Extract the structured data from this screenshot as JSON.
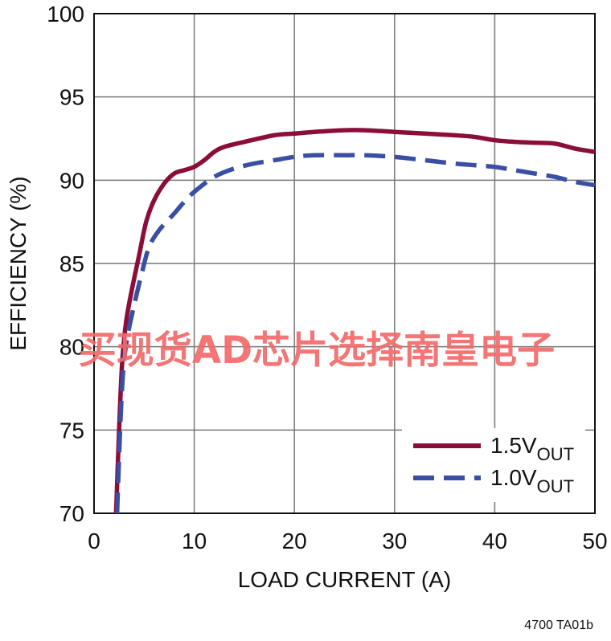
{
  "chart_data": {
    "type": "line",
    "title": "",
    "xlabel": "LOAD CURRENT (A)",
    "ylabel": "EFFICIENCY (%)",
    "xlim": [
      0,
      50
    ],
    "ylim": [
      70,
      100
    ],
    "x_ticks": [
      0,
      10,
      20,
      30,
      40,
      50
    ],
    "y_ticks": [
      70,
      75,
      80,
      85,
      90,
      95,
      100
    ],
    "grid": true,
    "legend_position": "bottom-right",
    "series": [
      {
        "name": "1.5VOUT",
        "label_main": "1.5V",
        "label_sub": "OUT",
        "color": "#8b0e3a",
        "dash": "solid",
        "x": [
          2.2,
          2.5,
          2.8,
          3.2,
          3.8,
          4.5,
          5.2,
          6,
          7,
          8,
          9,
          10,
          11,
          12,
          13,
          15,
          18,
          20,
          22,
          25,
          27,
          30,
          33,
          36,
          38,
          40,
          42,
          44,
          46,
          48,
          50
        ],
        "y": [
          70,
          75,
          79,
          81.5,
          83.5,
          85.5,
          87.5,
          88.8,
          89.8,
          90.4,
          90.6,
          90.8,
          91.2,
          91.7,
          92.0,
          92.3,
          92.7,
          92.8,
          92.9,
          93.0,
          93.0,
          92.9,
          92.8,
          92.7,
          92.6,
          92.4,
          92.3,
          92.25,
          92.2,
          91.9,
          91.7
        ]
      },
      {
        "name": "1.0VOUT",
        "label_main": "1.0V",
        "label_sub": "OUT",
        "color": "#3a4fa3",
        "dash": "dashed",
        "x": [
          2.3,
          2.6,
          2.9,
          3.3,
          4,
          4.8,
          5.5,
          6.5,
          8,
          9,
          10,
          12,
          14,
          16,
          18,
          20,
          22,
          25,
          27,
          30,
          33,
          36,
          38,
          40,
          42,
          44,
          46,
          48,
          50
        ],
        "y": [
          70,
          75,
          78.5,
          80.5,
          82.5,
          84.5,
          86,
          87,
          88,
          88.7,
          89.3,
          90.2,
          90.7,
          91.0,
          91.2,
          91.4,
          91.5,
          91.5,
          91.5,
          91.4,
          91.2,
          91.0,
          90.9,
          90.8,
          90.6,
          90.4,
          90.2,
          89.9,
          89.7
        ]
      }
    ]
  },
  "watermark": "买现货AD芯片选择南皇电子",
  "footnote": "4700 TA01b"
}
